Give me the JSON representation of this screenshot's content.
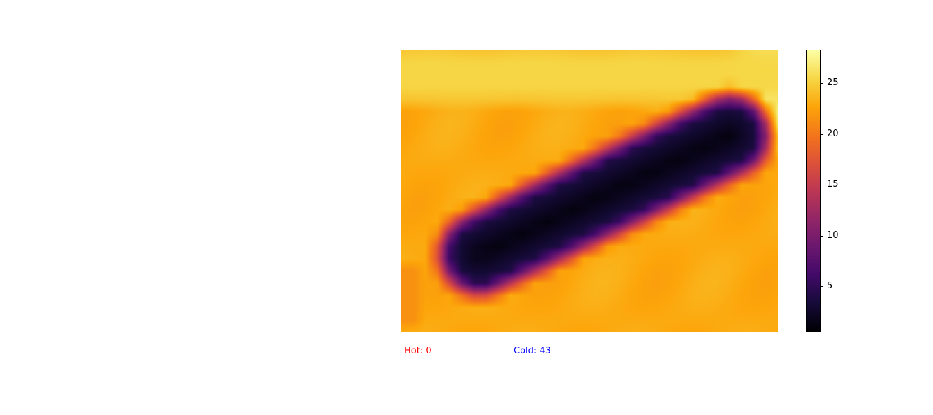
{
  "chart_data": {
    "type": "heatmap",
    "title": "",
    "xlabel": "",
    "ylabel": "",
    "colormap": "inferno",
    "value_range": [
      0.5,
      28.3
    ],
    "colorbar": {
      "ticks": [
        5,
        10,
        15,
        20,
        25
      ],
      "tick_labels": [
        "5",
        "10",
        "15",
        "20",
        "25"
      ]
    },
    "grid_size": [
      24,
      32
    ],
    "background_value": 23,
    "features": [
      {
        "kind": "cold_band",
        "from": [
          6.5,
          16.6
        ],
        "to": [
          27.1,
          6.9
        ],
        "width": 2.4,
        "min_value": 1,
        "falloff": 1.6
      },
      {
        "kind": "hot_spot",
        "center": [
          30.5,
          3.0
        ],
        "radius": [
          3.2,
          4.5
        ],
        "max_value": 28
      },
      {
        "kind": "warm_strip",
        "row_range": [
          0,
          4
        ],
        "value": 25.5
      },
      {
        "kind": "warm_edge",
        "col_range": [
          0,
          1
        ],
        "row_range": [
          18,
          22
        ],
        "value": 21.5
      }
    ]
  },
  "stats": {
    "hot_label": "Hot: 0",
    "cold_label": "Cold: 43"
  },
  "colors": {
    "hot": "#ff0000",
    "cold": "#0000ff"
  }
}
